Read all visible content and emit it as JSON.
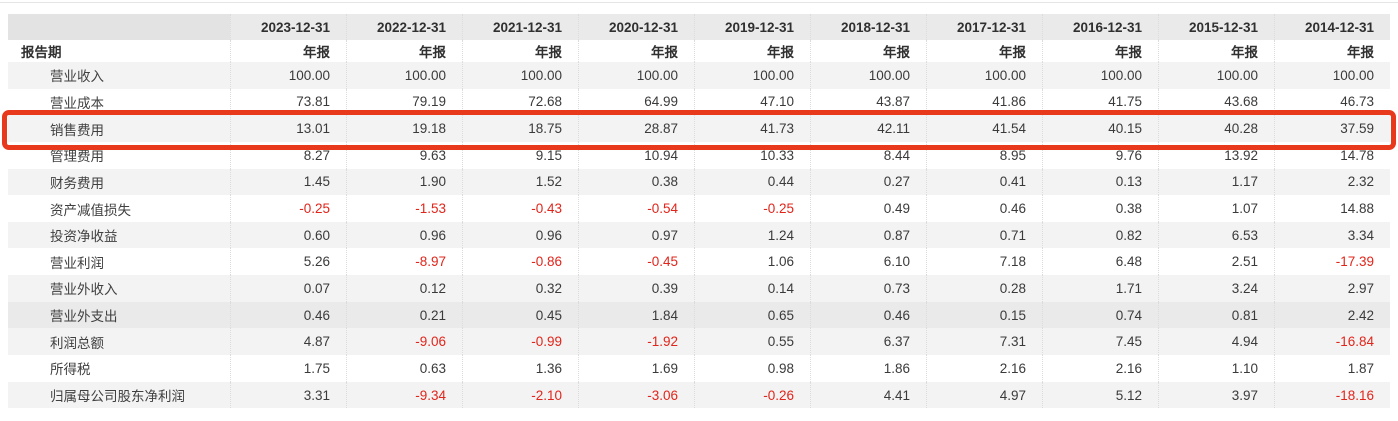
{
  "table": {
    "corner_label": "报告期",
    "period_type": "年报",
    "columns": [
      "2023-12-31",
      "2022-12-31",
      "2021-12-31",
      "2020-12-31",
      "2019-12-31",
      "2018-12-31",
      "2017-12-31",
      "2016-12-31",
      "2015-12-31",
      "2014-12-31"
    ],
    "rows": [
      {
        "label": "营业收入",
        "values": [
          "100.00",
          "100.00",
          "100.00",
          "100.00",
          "100.00",
          "100.00",
          "100.00",
          "100.00",
          "100.00",
          "100.00"
        ]
      },
      {
        "label": "营业成本",
        "values": [
          "73.81",
          "79.19",
          "72.68",
          "64.99",
          "47.10",
          "43.87",
          "41.86",
          "41.75",
          "43.68",
          "46.73"
        ]
      },
      {
        "label": "销售费用",
        "values": [
          "13.01",
          "19.18",
          "18.75",
          "28.87",
          "41.73",
          "42.11",
          "41.54",
          "40.15",
          "40.28",
          "37.59"
        ],
        "highlighted": true
      },
      {
        "label": "管理费用",
        "values": [
          "8.27",
          "9.63",
          "9.15",
          "10.94",
          "10.33",
          "8.44",
          "8.95",
          "9.76",
          "13.92",
          "14.78"
        ]
      },
      {
        "label": "财务费用",
        "values": [
          "1.45",
          "1.90",
          "1.52",
          "0.38",
          "0.44",
          "0.27",
          "0.41",
          "0.13",
          "1.17",
          "2.32"
        ]
      },
      {
        "label": "资产减值损失",
        "values": [
          "-0.25",
          "-1.53",
          "-0.43",
          "-0.54",
          "-0.25",
          "0.49",
          "0.46",
          "0.38",
          "1.07",
          "14.88"
        ]
      },
      {
        "label": "投资净收益",
        "values": [
          "0.60",
          "0.96",
          "0.96",
          "0.97",
          "1.24",
          "0.87",
          "0.71",
          "0.82",
          "6.53",
          "3.34"
        ]
      },
      {
        "label": "营业利润",
        "values": [
          "5.26",
          "-8.97",
          "-0.86",
          "-0.45",
          "1.06",
          "6.10",
          "7.18",
          "6.48",
          "2.51",
          "-17.39"
        ]
      },
      {
        "label": "营业外收入",
        "values": [
          "0.07",
          "0.12",
          "0.32",
          "0.39",
          "0.14",
          "0.73",
          "0.28",
          "1.71",
          "3.24",
          "2.97"
        ]
      },
      {
        "label": "营业外支出",
        "values": [
          "0.46",
          "0.21",
          "0.45",
          "1.84",
          "0.65",
          "0.46",
          "0.15",
          "0.74",
          "0.81",
          "2.42"
        ],
        "hovered": true
      },
      {
        "label": "利润总额",
        "values": [
          "4.87",
          "-9.06",
          "-0.99",
          "-1.92",
          "0.55",
          "6.37",
          "7.31",
          "7.45",
          "4.94",
          "-16.84"
        ]
      },
      {
        "label": "所得税",
        "values": [
          "1.75",
          "0.63",
          "1.36",
          "1.69",
          "0.98",
          "1.86",
          "2.16",
          "2.16",
          "1.10",
          "1.87"
        ]
      },
      {
        "label": "归属母公司股东净利润",
        "values": [
          "3.31",
          "-9.34",
          "-2.10",
          "-3.06",
          "-0.26",
          "4.41",
          "4.97",
          "5.12",
          "3.97",
          "-18.16"
        ]
      }
    ]
  },
  "colors": {
    "highlight_box": "#e8391c",
    "negative": "#e1251b",
    "stripe": "#f3f3f3",
    "hover_row": "#eaeaea"
  }
}
